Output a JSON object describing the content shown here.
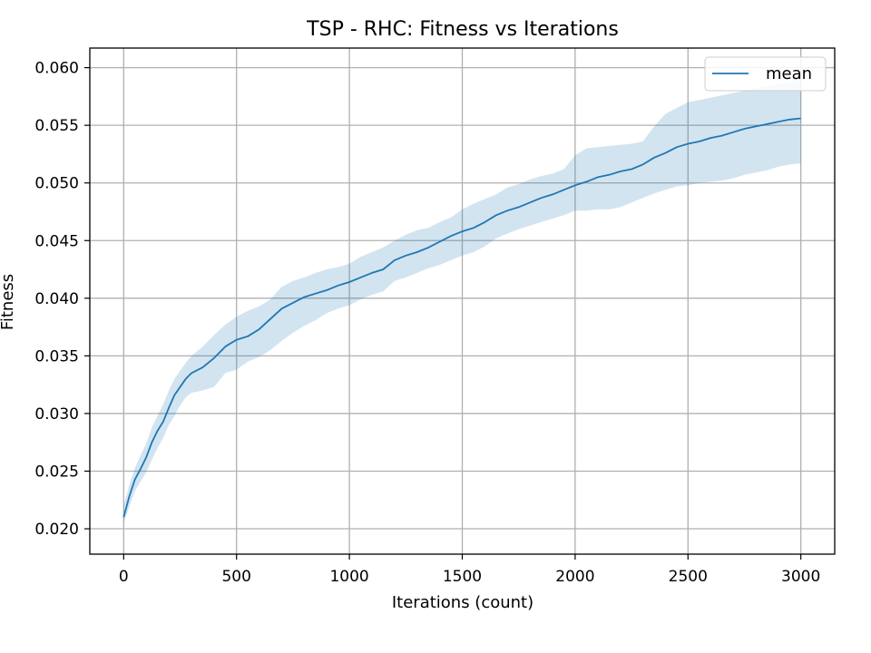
{
  "chart_data": {
    "type": "line",
    "title": "TSP - RHC: Fitness vs Iterations",
    "xlabel": "Iterations (count)",
    "ylabel": "Fitness",
    "xlim": [
      -150,
      3150
    ],
    "ylim": [
      0.0178,
      0.0617
    ],
    "xticks": [
      0,
      500,
      1000,
      1500,
      2000,
      2500,
      3000
    ],
    "xtick_labels": [
      "0",
      "500",
      "1000",
      "1500",
      "2000",
      "2500",
      "3000"
    ],
    "yticks": [
      0.02,
      0.025,
      0.03,
      0.035,
      0.04,
      0.045,
      0.05,
      0.055,
      0.06
    ],
    "ytick_labels": [
      "0.020",
      "0.025",
      "0.030",
      "0.035",
      "0.040",
      "0.045",
      "0.050",
      "0.055",
      "0.060"
    ],
    "grid": true,
    "legend_position": "top-right",
    "series": [
      {
        "name": "mean",
        "color": "#1f77b4",
        "band_color": "#1f77b4",
        "x": [
          0,
          25,
          50,
          75,
          100,
          125,
          150,
          175,
          200,
          225,
          250,
          275,
          300,
          350,
          400,
          450,
          500,
          550,
          600,
          650,
          700,
          750,
          800,
          850,
          900,
          950,
          1000,
          1050,
          1100,
          1150,
          1200,
          1250,
          1300,
          1350,
          1400,
          1450,
          1500,
          1550,
          1600,
          1650,
          1700,
          1750,
          1800,
          1850,
          1900,
          1950,
          2000,
          2050,
          2100,
          2150,
          2200,
          2250,
          2300,
          2350,
          2400,
          2450,
          2500,
          2550,
          2600,
          2650,
          2700,
          2750,
          2800,
          2850,
          2900,
          2950,
          3000
        ],
        "y": [
          0.021,
          0.0228,
          0.0243,
          0.0252,
          0.0262,
          0.0275,
          0.0285,
          0.0293,
          0.0305,
          0.0316,
          0.0323,
          0.033,
          0.0335,
          0.034,
          0.0348,
          0.0358,
          0.0364,
          0.0367,
          0.0373,
          0.0382,
          0.0391,
          0.0396,
          0.0401,
          0.0404,
          0.0407,
          0.0411,
          0.0414,
          0.0418,
          0.0422,
          0.0425,
          0.0433,
          0.0437,
          0.044,
          0.0444,
          0.0449,
          0.0454,
          0.0458,
          0.0461,
          0.0466,
          0.0472,
          0.0476,
          0.0479,
          0.0483,
          0.0487,
          0.049,
          0.0494,
          0.0498,
          0.0501,
          0.0505,
          0.0507,
          0.051,
          0.0512,
          0.0516,
          0.0522,
          0.0526,
          0.0531,
          0.0534,
          0.0536,
          0.0539,
          0.0541,
          0.0544,
          0.0547,
          0.0549,
          0.0551,
          0.0553,
          0.0555,
          0.0556
        ],
        "lower": [
          0.0205,
          0.0219,
          0.0233,
          0.0241,
          0.0249,
          0.026,
          0.027,
          0.0279,
          0.029,
          0.0298,
          0.0307,
          0.0314,
          0.0318,
          0.032,
          0.0323,
          0.0335,
          0.0338,
          0.0345,
          0.0349,
          0.0355,
          0.0363,
          0.037,
          0.0376,
          0.0381,
          0.0387,
          0.0391,
          0.0394,
          0.0399,
          0.0403,
          0.0406,
          0.0415,
          0.0418,
          0.0422,
          0.0426,
          0.0429,
          0.0433,
          0.0437,
          0.044,
          0.0445,
          0.0452,
          0.0456,
          0.046,
          0.0463,
          0.0466,
          0.0469,
          0.0472,
          0.0476,
          0.0476,
          0.0477,
          0.0477,
          0.0479,
          0.0483,
          0.0487,
          0.0491,
          0.0494,
          0.0497,
          0.0498,
          0.05,
          0.0501,
          0.0502,
          0.0504,
          0.0507,
          0.0509,
          0.0511,
          0.0514,
          0.0516,
          0.0517
        ],
        "upper": [
          0.022,
          0.0238,
          0.0253,
          0.0264,
          0.0274,
          0.0288,
          0.0298,
          0.0308,
          0.032,
          0.033,
          0.0337,
          0.0344,
          0.035,
          0.0358,
          0.0368,
          0.0377,
          0.0384,
          0.0389,
          0.0393,
          0.0399,
          0.041,
          0.0415,
          0.0418,
          0.0422,
          0.0425,
          0.0427,
          0.043,
          0.0436,
          0.044,
          0.0444,
          0.045,
          0.0455,
          0.0459,
          0.0461,
          0.0466,
          0.047,
          0.0477,
          0.0482,
          0.0486,
          0.049,
          0.0496,
          0.0499,
          0.0503,
          0.0506,
          0.0508,
          0.0512,
          0.0524,
          0.053,
          0.0531,
          0.0532,
          0.0533,
          0.0534,
          0.0536,
          0.0549,
          0.056,
          0.0565,
          0.057,
          0.0572,
          0.0574,
          0.0576,
          0.0578,
          0.058,
          0.0582,
          0.0584,
          0.0586,
          0.0588,
          0.059
        ]
      }
    ]
  }
}
